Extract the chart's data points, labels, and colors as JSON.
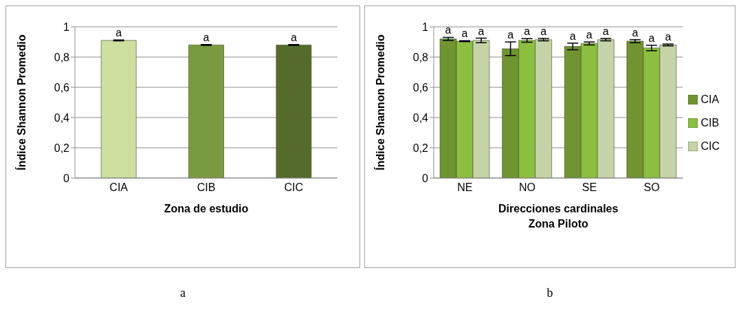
{
  "chart_data": [
    {
      "type": "bar",
      "xlabel": "Zona de estudio",
      "ylabel": "Índice Shannon Promedio",
      "categories": [
        "CIA",
        "CIB",
        "CIC"
      ],
      "values": [
        0.91,
        0.88,
        0.88
      ],
      "errors": [
        0.003,
        0.003,
        0.003
      ],
      "colors": [
        "#cde0a0",
        "#7a9a40",
        "#556b2b"
      ],
      "value_labels": [
        "a",
        "a",
        "a"
      ],
      "ylim": [
        0,
        1
      ],
      "yticks": [
        {
          "value": 0,
          "label": "0"
        },
        {
          "value": 0.2,
          "label": "0,2"
        },
        {
          "value": 0.4,
          "label": "0,4"
        },
        {
          "value": 0.6,
          "label": "0,6"
        },
        {
          "value": 0.8,
          "label": "0,8"
        },
        {
          "value": 1,
          "label": "1"
        }
      ],
      "grid": "y",
      "legend": false,
      "annotations": [
        "a"
      ]
    },
    {
      "type": "bar",
      "xlabel": "Direcciones cardinales\nZona Piloto",
      "ylabel": "Índice Shannon Promedio",
      "categories": [
        "NE",
        "NO",
        "SE",
        "SO"
      ],
      "series": [
        {
          "name": "CIA",
          "color": "#6f9430",
          "values": [
            0.92,
            0.855,
            0.87,
            0.905
          ],
          "errors": [
            0.01,
            0.045,
            0.022,
            0.01
          ],
          "value_labels": [
            "a",
            "a",
            "a",
            "a"
          ]
        },
        {
          "name": "CIB",
          "color": "#8cbf3f",
          "values": [
            0.905,
            0.91,
            0.89,
            0.86
          ],
          "errors": [
            0.003,
            0.012,
            0.01,
            0.018
          ],
          "value_labels": [
            "a",
            "a",
            "a",
            "a"
          ]
        },
        {
          "name": "CIC",
          "color": "#c4d4a8",
          "values": [
            0.91,
            0.915,
            0.915,
            0.88
          ],
          "errors": [
            0.015,
            0.008,
            0.008,
            0.006
          ],
          "value_labels": [
            "a",
            "a",
            "a",
            "a"
          ]
        }
      ],
      "ylim": [
        0,
        1
      ],
      "yticks": [
        {
          "value": 0,
          "label": "0"
        },
        {
          "value": 0.2,
          "label": "0,2"
        },
        {
          "value": 0.4,
          "label": "0,4"
        },
        {
          "value": 0.6,
          "label": "0,6"
        },
        {
          "value": 0.8,
          "label": "0,8"
        },
        {
          "value": 1,
          "label": "1"
        }
      ],
      "grid": "y",
      "legend": "right",
      "annotations": [
        "b"
      ]
    }
  ]
}
